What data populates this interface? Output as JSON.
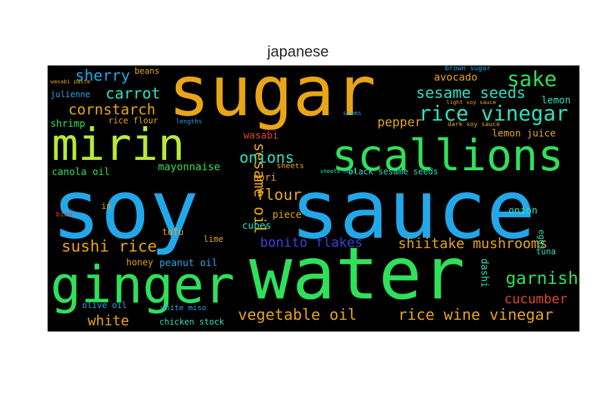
{
  "chart_data": {
    "type": "wordcloud",
    "title": "japanese",
    "colors": {
      "blue": "#22a7e8",
      "green": "#2fe05a",
      "orange": "#e8a516",
      "teal": "#2fe0c0",
      "lime": "#b8e83a",
      "red": "#e2452a",
      "indigo": "#3b3fe0"
    },
    "words": [
      {
        "text": "soy",
        "color": "#22a7e8"
      },
      {
        "text": "sauce",
        "color": "#22a7e8"
      },
      {
        "text": "sugar",
        "color": "#e8a516"
      },
      {
        "text": "water",
        "color": "#2fe05a"
      },
      {
        "text": "mirin",
        "color": "#b8e83a"
      },
      {
        "text": "ginger",
        "color": "#2fe05a"
      },
      {
        "text": "scallions",
        "color": "#2fe05a"
      },
      {
        "text": "rice vinegar",
        "color": "#2fe0c0"
      },
      {
        "text": "sesame seeds",
        "color": "#2fe0c0"
      },
      {
        "text": "sake",
        "color": "#2fe05a"
      },
      {
        "text": "sherry",
        "color": "#22a7e8"
      },
      {
        "text": "carrot",
        "color": "#2fe0c0"
      },
      {
        "text": "cornstarch",
        "color": "#e8a516"
      },
      {
        "text": "sesame oil",
        "color": "#e8a516"
      },
      {
        "text": "onions",
        "color": "#2fe0c0"
      },
      {
        "text": "flour",
        "color": "#e8a516"
      },
      {
        "text": "garnish",
        "color": "#2fe05a"
      },
      {
        "text": "sushi rice",
        "color": "#e8a516"
      },
      {
        "text": "shiitake mushrooms",
        "color": "#e8a516"
      },
      {
        "text": "bonito flakes",
        "color": "#3b3fe0"
      },
      {
        "text": "vegetable oil",
        "color": "#e8a516"
      },
      {
        "text": "rice wine vinegar",
        "color": "#e8a516"
      },
      {
        "text": "cucumber",
        "color": "#e2452a"
      },
      {
        "text": "white",
        "color": "#e8a516"
      },
      {
        "text": "pepper",
        "color": "#e8a516"
      },
      {
        "text": "avocado",
        "color": "#e8a516"
      },
      {
        "text": "lemon",
        "color": "#2fe0c0"
      },
      {
        "text": "lemon juice",
        "color": "#e8a516"
      },
      {
        "text": "wasabi",
        "color": "#e2452a"
      },
      {
        "text": "mayonnaise",
        "color": "#2fe05a"
      },
      {
        "text": "canola oil",
        "color": "#2fe05a"
      },
      {
        "text": "shrimp",
        "color": "#2fe05a"
      },
      {
        "text": "julienne",
        "color": "#22a7e8"
      },
      {
        "text": "rice flour",
        "color": "#e8a516"
      },
      {
        "text": "nori",
        "color": "#e8a516"
      },
      {
        "text": "piece",
        "color": "#e8a516"
      },
      {
        "text": "cubes",
        "color": "#2fe0c0"
      },
      {
        "text": "tofu",
        "color": "#e8a516"
      },
      {
        "text": "lime",
        "color": "#e8a516"
      },
      {
        "text": "honey",
        "color": "#e8a516"
      },
      {
        "text": "peanut oil",
        "color": "#22a7e8"
      },
      {
        "text": "white miso",
        "color": "#22a7e8"
      },
      {
        "text": "chicken stock",
        "color": "#2fe0c0"
      },
      {
        "text": "olive oil",
        "color": "#22a7e8"
      },
      {
        "text": "onion",
        "color": "#2fe0c0"
      },
      {
        "text": "tuna",
        "color": "#2fe0c0"
      },
      {
        "text": "dashi",
        "color": "#2fe0c0"
      },
      {
        "text": "eggs",
        "color": "#2fe0c0"
      },
      {
        "text": "beans",
        "color": "#e8a516"
      },
      {
        "text": "sheets",
        "color": "#e8a516"
      },
      {
        "text": "black sesame seeds",
        "color": "#2fe0c0"
      },
      {
        "text": "sheets nori",
        "color": "#2fe0c0"
      },
      {
        "text": "dark soy sauce",
        "color": "#e8a516"
      },
      {
        "text": "light soy sauce",
        "color": "#e8a516"
      },
      {
        "text": "brown sugar",
        "color": "#22a7e8"
      },
      {
        "text": "stems",
        "color": "#22a7e8"
      },
      {
        "text": "lengths",
        "color": "#22a7e8"
      },
      {
        "text": "in",
        "color": "#e8a516"
      },
      {
        "text": "bias",
        "color": "#e2452a"
      },
      {
        "text": "wasabi paste",
        "color": "#e8a516"
      }
    ]
  }
}
